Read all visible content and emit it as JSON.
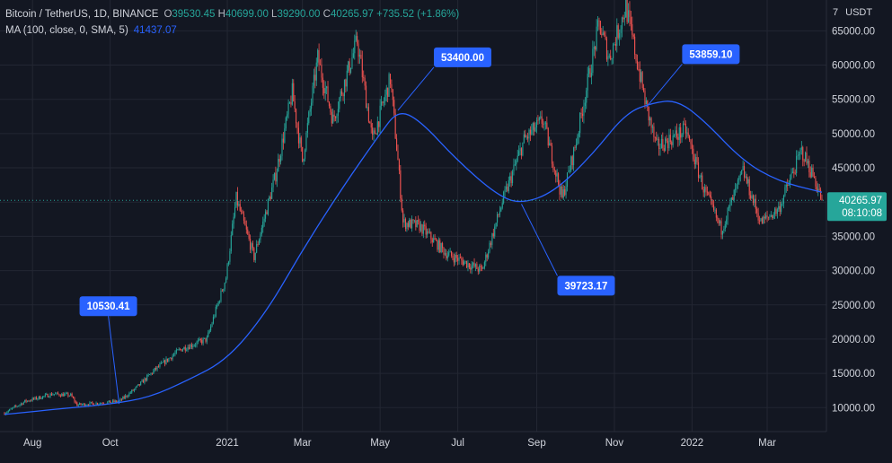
{
  "legend": {
    "symbol": "Bitcoin / TetherUS, 1D, BINANCE",
    "o_label": "O",
    "o_value": "39530.45",
    "h_label": "H",
    "h_value": "40699.00",
    "l_label": "L",
    "l_value": "39290.00",
    "c_label": "C",
    "c_value": "40265.97",
    "change": "+735.52 (+1.86%)",
    "ma_name": "MA (100, close, 0, SMA, 5)",
    "ma_value": "41437.07"
  },
  "currency": {
    "count": "7",
    "label": "USDT"
  },
  "price_tag": {
    "price": "40265.97",
    "countdown": "08:10:08"
  },
  "colors": {
    "background": "#131722",
    "grid": "#232733",
    "up": "#26a69a",
    "down": "#ef5350",
    "ma": "#2962ff",
    "callout": "#2962ff",
    "axis_text": "#b2b5be",
    "price_tag": "#26a69a"
  },
  "chart_data": {
    "type": "candlestick",
    "title": "Bitcoin / TetherUS, 1D, BINANCE",
    "ylim": [
      6500,
      69500
    ],
    "y_ticks": [
      10000,
      15000,
      20000,
      25000,
      30000,
      35000,
      40000,
      45000,
      50000,
      55000,
      60000,
      65000
    ],
    "x_ticks": [
      {
        "label": "Aug",
        "date": "2020-08-01"
      },
      {
        "label": "Oct",
        "date": "2020-10-01"
      },
      {
        "label": "2021",
        "date": "2021-01-01"
      },
      {
        "label": "Mar",
        "date": "2021-03-01"
      },
      {
        "label": "May",
        "date": "2021-05-01"
      },
      {
        "label": "Jul",
        "date": "2021-07-01"
      },
      {
        "label": "Sep",
        "date": "2021-09-01"
      },
      {
        "label": "Nov",
        "date": "2021-11-01"
      },
      {
        "label": "2022",
        "date": "2022-01-01"
      },
      {
        "label": "Mar",
        "date": "2022-03-01"
      }
    ],
    "price_path": [
      [
        "2020-07-10",
        9200
      ],
      [
        "2020-07-26",
        10900
      ],
      [
        "2020-08-17",
        12000
      ],
      [
        "2020-08-31",
        11800
      ],
      [
        "2020-09-05",
        10400
      ],
      [
        "2020-09-25",
        10700
      ],
      [
        "2020-10-08",
        10900
      ],
      [
        "2020-10-21",
        12800
      ],
      [
        "2020-11-05",
        15500
      ],
      [
        "2020-11-25",
        18500
      ],
      [
        "2020-12-16",
        20000
      ],
      [
        "2020-12-31",
        29000
      ],
      [
        "2021-01-08",
        40500
      ],
      [
        "2021-01-22",
        32000
      ],
      [
        "2021-02-08",
        44000
      ],
      [
        "2021-02-21",
        56000
      ],
      [
        "2021-03-01",
        46000
      ],
      [
        "2021-03-13",
        61000
      ],
      [
        "2021-03-25",
        52000
      ],
      [
        "2021-04-13",
        63500
      ],
      [
        "2021-04-25",
        49000
      ],
      [
        "2021-05-09",
        58000
      ],
      [
        "2021-05-15",
        46000
      ],
      [
        "2021-05-19",
        37000
      ],
      [
        "2021-06-01",
        36500
      ],
      [
        "2021-06-22",
        32500
      ],
      [
        "2021-07-20",
        30000
      ],
      [
        "2021-08-05",
        40000
      ],
      [
        "2021-08-22",
        49000
      ],
      [
        "2021-09-06",
        52000
      ],
      [
        "2021-09-21",
        40500
      ],
      [
        "2021-10-01",
        48000
      ],
      [
        "2021-10-20",
        66000
      ],
      [
        "2021-10-28",
        61000
      ],
      [
        "2021-11-10",
        68500
      ],
      [
        "2021-11-26",
        54000
      ],
      [
        "2021-12-04",
        48000
      ],
      [
        "2021-12-27",
        50500
      ],
      [
        "2022-01-10",
        42000
      ],
      [
        "2022-01-24",
        36000
      ],
      [
        "2022-02-10",
        44500
      ],
      [
        "2022-02-24",
        37000
      ],
      [
        "2022-03-10",
        39000
      ],
      [
        "2022-03-28",
        47500
      ],
      [
        "2022-04-07",
        43500
      ],
      [
        "2022-04-13",
        40200
      ]
    ],
    "ma_path": [
      [
        "2020-07-10",
        9000
      ],
      [
        "2020-09-01",
        10000
      ],
      [
        "2020-10-01",
        10500
      ],
      [
        "2020-11-01",
        11500
      ],
      [
        "2020-12-01",
        14000
      ],
      [
        "2021-01-01",
        17000
      ],
      [
        "2021-02-01",
        24000
      ],
      [
        "2021-03-01",
        33000
      ],
      [
        "2021-04-01",
        42000
      ],
      [
        "2021-05-01",
        50000
      ],
      [
        "2021-05-15",
        53400
      ],
      [
        "2021-06-01",
        52000
      ],
      [
        "2021-07-01",
        46000
      ],
      [
        "2021-08-01",
        41000
      ],
      [
        "2021-08-20",
        39723
      ],
      [
        "2021-09-15",
        41500
      ],
      [
        "2021-10-15",
        47000
      ],
      [
        "2021-11-10",
        53000
      ],
      [
        "2021-12-01",
        54500
      ],
      [
        "2021-12-20",
        54900
      ],
      [
        "2022-01-10",
        52000
      ],
      [
        "2022-02-10",
        46000
      ],
      [
        "2022-03-10",
        43000
      ],
      [
        "2022-04-13",
        41437
      ]
    ],
    "annotations": [
      {
        "text": "10530.41",
        "date": "2020-10-08",
        "value": 10530.41
      },
      {
        "text": "53400.00",
        "date": "2021-05-15",
        "value": 53400.0
      },
      {
        "text": "39723.17",
        "date": "2021-08-20",
        "value": 39723.17
      },
      {
        "text": "53859.10",
        "date": "2021-11-26",
        "value": 53859.1
      }
    ],
    "last_price": 40265.97,
    "grid": true,
    "legend_position": "top-left"
  }
}
